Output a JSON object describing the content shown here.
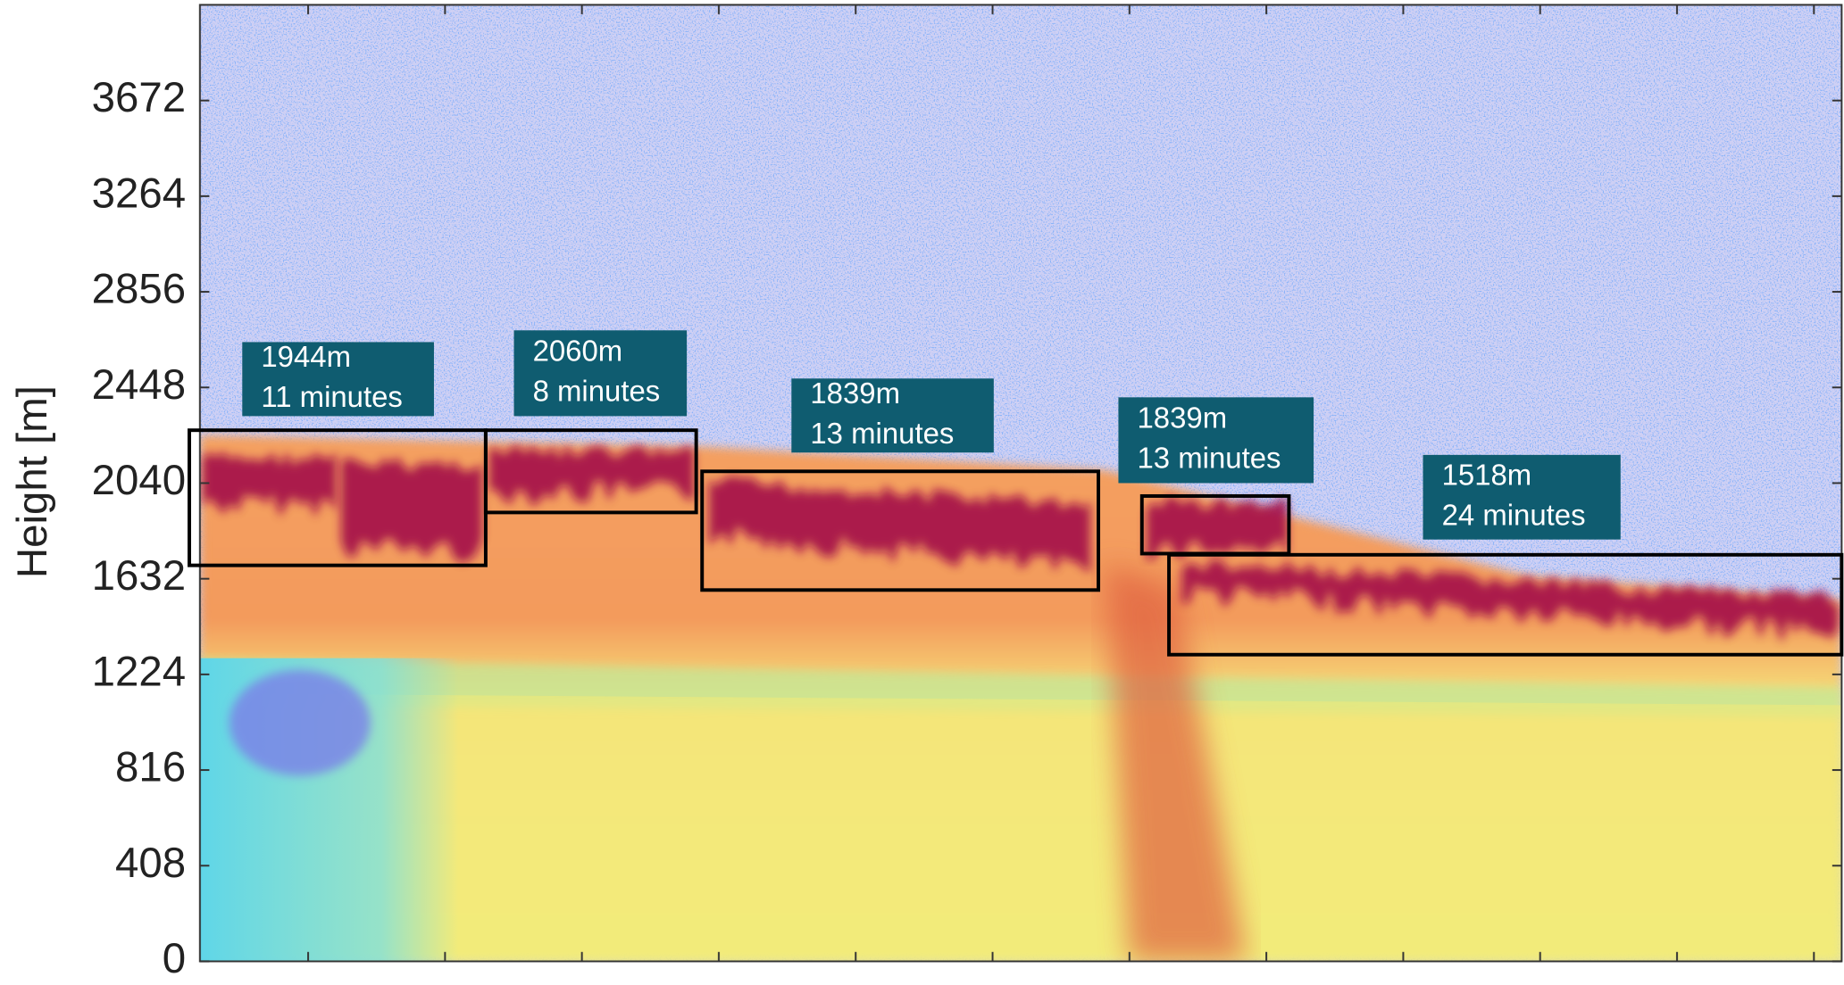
{
  "chart_data": {
    "type": "heatmap",
    "y_label": "Height [m]",
    "ylim": [
      0,
      4080
    ],
    "yticks": [
      0,
      408,
      816,
      1224,
      1632,
      2040,
      2448,
      2856,
      3264,
      3672
    ],
    "annotations": [
      {
        "height": "1944m",
        "duration": "11 minutes"
      },
      {
        "height": "2060m",
        "duration": "8 minutes"
      },
      {
        "height": "1839m",
        "duration": "13 minutes"
      },
      {
        "height": "1839m",
        "duration": "13 minutes"
      },
      {
        "height": "1518m",
        "duration": "24 minutes"
      }
    ]
  }
}
